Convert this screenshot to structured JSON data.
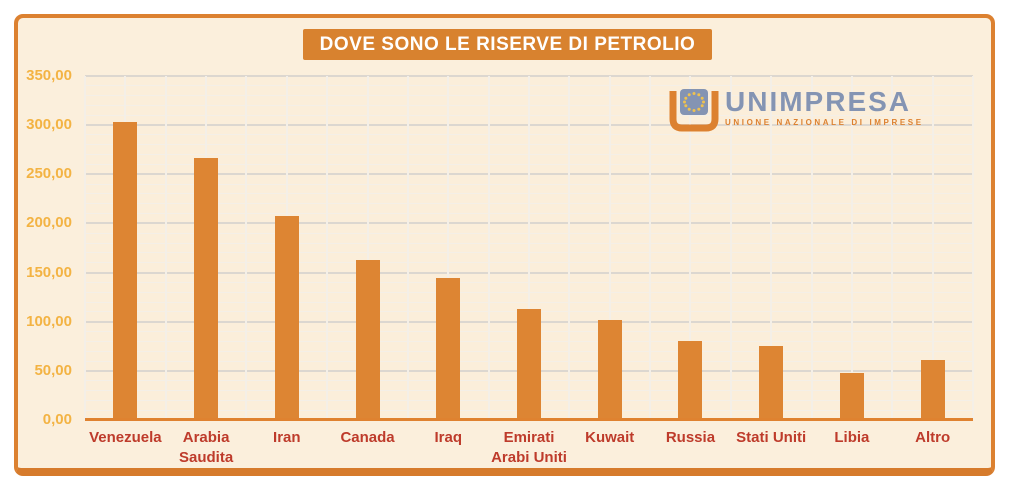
{
  "title": "DOVE SONO LE RISERVE DI PETROLIO",
  "logo": {
    "name": "UNIMPRESA",
    "tagline": "UNIONE NAZIONALE DI IMPRESE",
    "icon": "eu-flag-in-orange-u-icon"
  },
  "chart_data": {
    "type": "bar",
    "title": "DOVE SONO LE RISERVE DI PETROLIO",
    "categories": [
      "Venezuela",
      "Arabia Saudita",
      "Iran",
      "Canada",
      "Iraq",
      "Emirati Arabi Uniti",
      "Kuwait",
      "Russia",
      "Stati Uniti",
      "Libia",
      "Altro"
    ],
    "values": [
      303,
      267,
      208,
      163,
      145,
      113,
      102,
      80,
      75,
      48,
      61
    ],
    "xlabel": "",
    "ylabel": "",
    "ylim": [
      0,
      350
    ],
    "ytick_step": 50,
    "ytick_minor_step": 10,
    "ytick_labels": [
      "0,00",
      "50,00",
      "100,00",
      "150,00",
      "200,00",
      "250,00",
      "300,00",
      "350,00"
    ],
    "grid": true,
    "legend": false
  },
  "colors": {
    "accent_orange": "#DC8130",
    "border_bottom": "#D67B2C",
    "banner": "#D8822F",
    "bar": "#DD8533",
    "baseline": "#DF8230",
    "card_bg": "#FBEFDC",
    "plot_bg": "#FBEEDA",
    "grid_major": "#DCD7D0",
    "grid_minor": "#F4EFE7",
    "axis_value_labels": "#F3B343",
    "category_labels": "#BE3B2B",
    "logo_blue": "#8494B3",
    "logo_gold": "#EFC24F"
  }
}
